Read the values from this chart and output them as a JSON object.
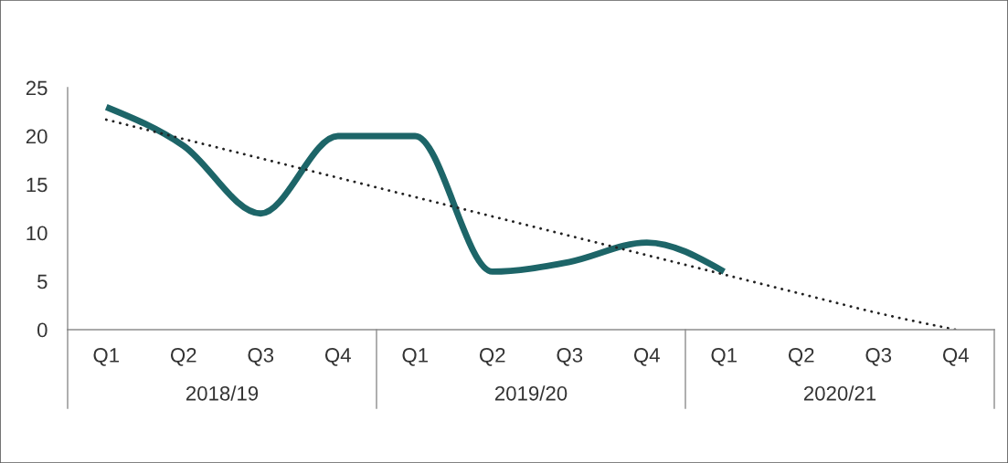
{
  "chart_data": {
    "type": "line",
    "categories": [
      "Q1",
      "Q2",
      "Q3",
      "Q4",
      "Q1",
      "Q2",
      "Q3",
      "Q4",
      "Q1",
      "Q2",
      "Q3",
      "Q4"
    ],
    "series": [
      {
        "color": "#1d6568",
        "values": [
          23,
          19,
          12,
          20,
          20,
          6,
          7,
          9,
          6,
          null,
          null,
          null
        ]
      },
      {
        "color": "#222222",
        "line_style": "dotted",
        "values": [
          21.7,
          19.7,
          17.7,
          15.7,
          13.7,
          11.7,
          9.7,
          7.7,
          5.7,
          3.7,
          1.7,
          0
        ]
      }
    ],
    "ylim": [
      0,
      25
    ],
    "yticks": [
      0,
      5,
      10,
      15,
      20,
      25
    ],
    "annotations": [
      "2018/19",
      "2019/20",
      "2020/21"
    ]
  }
}
